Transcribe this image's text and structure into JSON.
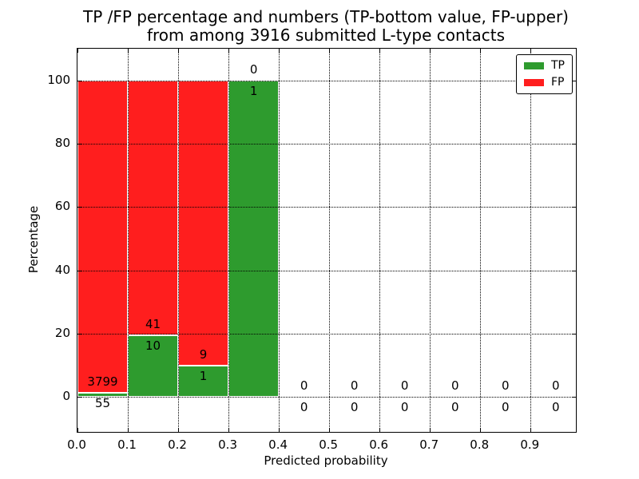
{
  "chart_data": {
    "type": "bar",
    "subtype": "stacked-percentage-histogram",
    "title": "TP /FP percentage and numbers (TP-bottom value, FP-upper) from among 3916 submitted L-type contacts",
    "title_lines": [
      "TP /FP percentage and numbers (TP-bottom value, FP-upper)",
      "from among 3916 submitted L-type contacts"
    ],
    "xlabel": "Predicted probability",
    "ylabel": "Percentage",
    "xlim": [
      0,
      0.99
    ],
    "ylim": [
      -11,
      110
    ],
    "xticks": [
      "0.0",
      "0.1",
      "0.2",
      "0.3",
      "0.4",
      "0.5",
      "0.6",
      "0.7",
      "0.8",
      "0.9"
    ],
    "yticks": [
      0,
      20,
      40,
      60,
      80,
      100
    ],
    "grid": "dotted",
    "legend_position": "upper right",
    "legend": [
      {
        "label": "TP",
        "color": "#2E9B2E"
      },
      {
        "label": "FP",
        "color": "#FF1E1E"
      }
    ],
    "total_contacts": 3916,
    "bins": [
      {
        "range": [
          0.0,
          0.1
        ],
        "tp": 55,
        "fp": 3799,
        "tp_pct": 1.43,
        "fp_pct": 98.57
      },
      {
        "range": [
          0.1,
          0.2
        ],
        "tp": 10,
        "fp": 41,
        "tp_pct": 19.61,
        "fp_pct": 80.39
      },
      {
        "range": [
          0.2,
          0.3
        ],
        "tp": 1,
        "fp": 9,
        "tp_pct": 10.0,
        "fp_pct": 90.0
      },
      {
        "range": [
          0.3,
          0.4
        ],
        "tp": 1,
        "fp": 0,
        "tp_pct": 100.0,
        "fp_pct": 0.0
      },
      {
        "range": [
          0.4,
          0.5
        ],
        "tp": 0,
        "fp": 0,
        "tp_pct": 0,
        "fp_pct": 0
      },
      {
        "range": [
          0.5,
          0.6
        ],
        "tp": 0,
        "fp": 0,
        "tp_pct": 0,
        "fp_pct": 0
      },
      {
        "range": [
          0.6,
          0.7
        ],
        "tp": 0,
        "fp": 0,
        "tp_pct": 0,
        "fp_pct": 0
      },
      {
        "range": [
          0.7,
          0.8
        ],
        "tp": 0,
        "fp": 0,
        "tp_pct": 0,
        "fp_pct": 0
      },
      {
        "range": [
          0.8,
          0.9
        ],
        "tp": 0,
        "fp": 0,
        "tp_pct": 0,
        "fp_pct": 0
      },
      {
        "range": [
          0.9,
          1.0
        ],
        "tp": 0,
        "fp": 0,
        "tp_pct": 0,
        "fp_pct": 0
      }
    ],
    "colors": {
      "tp": "#2E9B2E",
      "fp": "#FF1E1E",
      "bar_edge": "#ffffff",
      "grid": "#000000",
      "text": "#000000",
      "background": "#ffffff"
    }
  }
}
